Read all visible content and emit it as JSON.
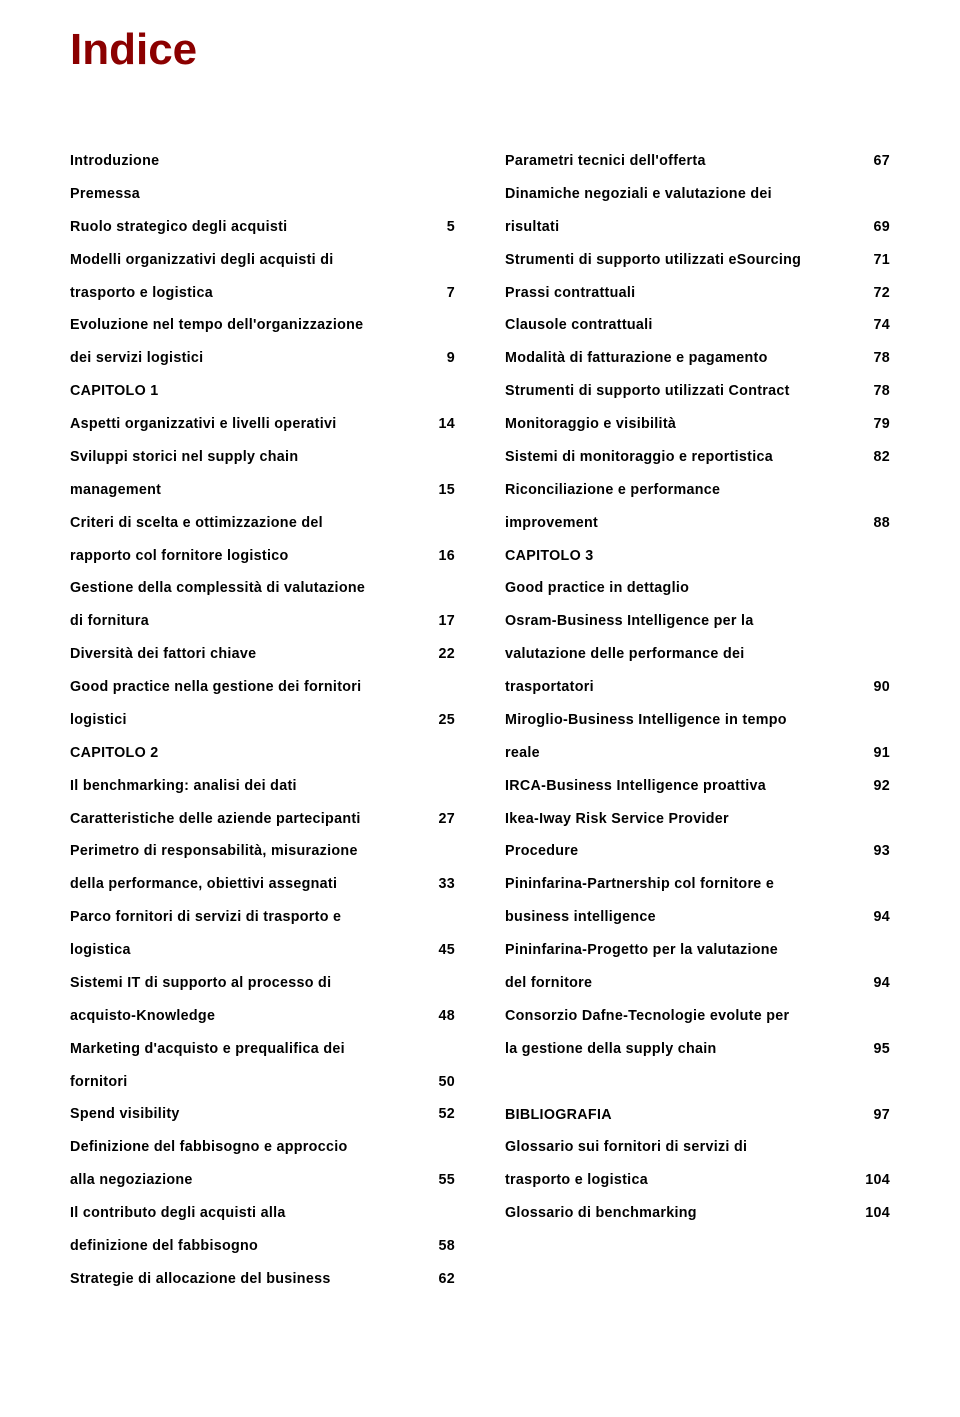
{
  "title": "Indice",
  "left": [
    {
      "label": "Introduzione",
      "page": ""
    },
    {
      "label": "Premessa",
      "page": ""
    },
    {
      "label": "Ruolo strategico degli acquisti",
      "page": "5"
    },
    {
      "label": "Modelli organizzativi degli acquisti di",
      "page": ""
    },
    {
      "label": "trasporto e logistica",
      "page": "7"
    },
    {
      "label": "Evoluzione nel tempo dell'organizzazione",
      "page": ""
    },
    {
      "label": "dei servizi logistici",
      "page": "9"
    },
    {
      "label": "CAPITOLO 1",
      "page": ""
    },
    {
      "label": "Aspetti organizzativi e livelli operativi",
      "page": "14"
    },
    {
      "label": "Sviluppi storici nel supply chain",
      "page": ""
    },
    {
      "label": "management",
      "page": "15"
    },
    {
      "label": "Criteri di scelta e ottimizzazione del",
      "page": ""
    },
    {
      "label": "rapporto col fornitore logistico",
      "page": "16"
    },
    {
      "label": "Gestione della complessità di valutazione",
      "page": ""
    },
    {
      "label": "di fornitura",
      "page": "17"
    },
    {
      "label": "Diversità dei fattori chiave",
      "page": "22"
    },
    {
      "label": "Good practice nella gestione dei fornitori",
      "page": ""
    },
    {
      "label": "logistici",
      "page": "25"
    },
    {
      "label": "CAPITOLO 2",
      "page": ""
    },
    {
      "label": "Il benchmarking: analisi dei dati",
      "page": ""
    },
    {
      "label": "Caratteristiche delle aziende partecipanti",
      "page": "27"
    },
    {
      "label": "Perimetro di responsabilità, misurazione",
      "page": ""
    },
    {
      "label": "della performance, obiettivi assegnati",
      "page": "33"
    },
    {
      "label": "Parco fornitori di servizi di trasporto e",
      "page": ""
    },
    {
      "label": "logistica",
      "page": "45"
    },
    {
      "label": "Sistemi IT di supporto al processo di",
      "page": ""
    },
    {
      "label": "acquisto-Knowledge",
      "page": "48"
    },
    {
      "label": "Marketing d'acquisto e prequalifica dei",
      "page": ""
    },
    {
      "label": "fornitori",
      "page": "50"
    },
    {
      "label": "Spend visibility",
      "page": "52"
    },
    {
      "label": "Definizione del fabbisogno e approccio",
      "page": ""
    },
    {
      "label": "alla negoziazione",
      "page": "55"
    },
    {
      "label": "Il contributo degli acquisti alla",
      "page": ""
    },
    {
      "label": "definizione del fabbisogno",
      "page": "58"
    },
    {
      "label": "Strategie di allocazione del business",
      "page": "62"
    }
  ],
  "right": [
    {
      "label": "Parametri tecnici dell'offerta",
      "page": "67"
    },
    {
      "label": "Dinamiche negoziali e valutazione dei",
      "page": ""
    },
    {
      "label": "risultati",
      "page": "69"
    },
    {
      "label": "Strumenti di supporto utilizzati eSourcing",
      "page": "71"
    },
    {
      "label": "Prassi contrattuali",
      "page": "72"
    },
    {
      "label": "Clausole contrattuali",
      "page": "74"
    },
    {
      "label": "Modalità di fatturazione e pagamento",
      "page": "78"
    },
    {
      "label": "Strumenti di supporto utilizzati Contract",
      "page": "78"
    },
    {
      "label": "Monitoraggio e visibilità",
      "page": "79"
    },
    {
      "label": "Sistemi di monitoraggio e reportistica",
      "page": "82"
    },
    {
      "label": "Riconciliazione e performance",
      "page": ""
    },
    {
      "label": "improvement",
      "page": "88"
    },
    {
      "label": "CAPITOLO 3",
      "page": ""
    },
    {
      "label": "Good practice in dettaglio",
      "page": ""
    },
    {
      "label": "Osram-Business Intelligence per la",
      "page": ""
    },
    {
      "label": "valutazione delle performance dei",
      "page": ""
    },
    {
      "label": "trasportatori",
      "page": "90"
    },
    {
      "label": "Miroglio-Business Intelligence in tempo",
      "page": ""
    },
    {
      "label": "reale",
      "page": "91"
    },
    {
      "label": "IRCA-Business Intelligence proattiva",
      "page": "92"
    },
    {
      "label": "Ikea-Iway Risk Service Provider",
      "page": ""
    },
    {
      "label": "Procedure",
      "page": "93"
    },
    {
      "label": "Pininfarina-Partnership col fornitore e",
      "page": ""
    },
    {
      "label": "business intelligence",
      "page": "94"
    },
    {
      "label": "Pininfarina-Progetto per la valutazione",
      "page": ""
    },
    {
      "label": "del fornitore",
      "page": "94"
    },
    {
      "label": "Consorzio Dafne-Tecnologie evolute per",
      "page": ""
    },
    {
      "label": "la gestione della supply chain",
      "page": "95"
    },
    {
      "label": "",
      "page": "",
      "spacer": true
    },
    {
      "label": "BIBLIOGRAFIA",
      "page": "97"
    },
    {
      "label": "Glossario sui fornitori di servizi di",
      "page": ""
    },
    {
      "label": "trasporto e logistica",
      "page": "104"
    },
    {
      "label": "Glossario di benchmarking",
      "page": "104"
    }
  ]
}
